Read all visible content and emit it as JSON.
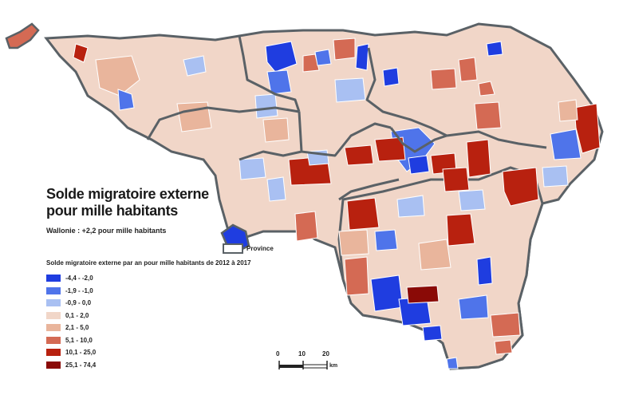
{
  "title_line1": "Solde migratoire externe",
  "title_line2": "pour mille habitants",
  "subtitle": "Wallonie : +2,2 pour mille habitants",
  "province_label": "Province",
  "legend_title": "Solde migratoire externe par an pour mille habitants de 2012 à 2017",
  "legend": [
    {
      "label": "-4,4 - -2,0",
      "color": "#1f3de0"
    },
    {
      "label": "-1,9 - -1,0",
      "color": "#4f74ea"
    },
    {
      "label": "-0,9 - 0,0",
      "color": "#a9c0f2"
    },
    {
      "label": "0,1 - 2,0",
      "color": "#f1d6c8"
    },
    {
      "label": "2,1 - 5,0",
      "color": "#e9b59c"
    },
    {
      "label": "5,1 - 10,0",
      "color": "#d46a54"
    },
    {
      "label": "10,1 - 25,0",
      "color": "#b8210f"
    },
    {
      "label": "25,1 - 74,4",
      "color": "#8a0a06"
    }
  ],
  "scale": {
    "ticks": [
      "0",
      "10",
      "20"
    ],
    "unit": "km"
  },
  "colors": {
    "province_border": "#5a6166",
    "commune_border": "#ffffff"
  }
}
